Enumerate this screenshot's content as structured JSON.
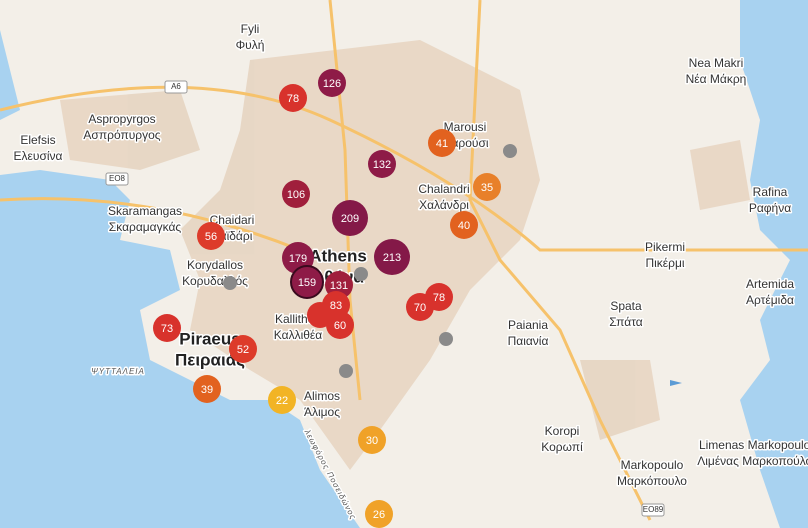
{
  "places": [
    {
      "name": "Fyli",
      "local": "Φυλή"
    },
    {
      "name": "Aspropyrgos",
      "local": "Ασπρόπυργος"
    },
    {
      "name": "Elefsis",
      "local": "Ελευσίνα"
    },
    {
      "name": "Skaramangas",
      "local": "Σκαραμαγκάς"
    },
    {
      "name": "Chaidari",
      "local": "Χαϊδάρι"
    },
    {
      "name": "Korydallos",
      "local": "Κορυδαλλός"
    },
    {
      "name": "Piraeus",
      "local": "Πειραιάς"
    },
    {
      "name": "Kallithea",
      "local": "Καλλιθέα"
    },
    {
      "name": "Athens",
      "local": "Αθήνα"
    },
    {
      "name": "Marousi",
      "local": "Μαρούσι"
    },
    {
      "name": "Chalandri",
      "local": "Χαλάνδρι"
    },
    {
      "name": "Nea Makri",
      "local": "Νέα Μάκρη"
    },
    {
      "name": "Rafina",
      "local": "Ραφήνα"
    },
    {
      "name": "Pikermi",
      "local": "Πικέρμι"
    },
    {
      "name": "Artemida",
      "local": "Αρτέμιδα"
    },
    {
      "name": "Spata",
      "local": "Σπάτα"
    },
    {
      "name": "Paiania",
      "local": "Παιανία"
    },
    {
      "name": "Alimos",
      "local": "Άλιμος"
    },
    {
      "name": "Koropi",
      "local": "Κορωπί"
    },
    {
      "name": "Markopoulo",
      "local": "Μαρκόπουλο"
    },
    {
      "name": "Limenas Markopoulou",
      "local": "Λιμένας Μαρκοπούλου"
    }
  ],
  "small_labels": [
    "ΨΥΤΤΑΛΕΙΑ",
    "λεωφόρος Ποσειδώνος"
  ],
  "road_shields": [
    "A6",
    "EO8",
    "EO89"
  ],
  "markers": [
    {
      "value": 126,
      "color": "#8e1b47"
    },
    {
      "value": 78,
      "color": "#d8322c"
    },
    {
      "value": 41,
      "color": "#e2621f"
    },
    {
      "value": 132,
      "color": "#8e1b47"
    },
    {
      "value": 35,
      "color": "#e8802a"
    },
    {
      "value": 106,
      "color": "#a01f3c"
    },
    {
      "value": 209,
      "color": "#841948"
    },
    {
      "value": 40,
      "color": "#e2621f"
    },
    {
      "value": 56,
      "color": "#dd3b2a"
    },
    {
      "value": 213,
      "color": "#841948"
    },
    {
      "value": 179,
      "color": "#8e1b47"
    },
    {
      "value": 159,
      "color": "#8e1b47"
    },
    {
      "value": 131,
      "color": "#a01f3c"
    },
    {
      "value": 78,
      "color": "#d8322c"
    },
    {
      "value": 70,
      "color": "#d8322c"
    },
    {
      "value": 83,
      "color": "#d8322c"
    },
    {
      "value": 60,
      "color": "#d8322c"
    },
    {
      "value": 73,
      "color": "#d8322c"
    },
    {
      "value": 52,
      "color": "#dd3b2a"
    },
    {
      "value": 39,
      "color": "#e2621f"
    },
    {
      "value": 22,
      "color": "#f2b425"
    },
    {
      "value": 30,
      "color": "#f0a228"
    },
    {
      "value": 26,
      "color": "#f0a228"
    }
  ]
}
